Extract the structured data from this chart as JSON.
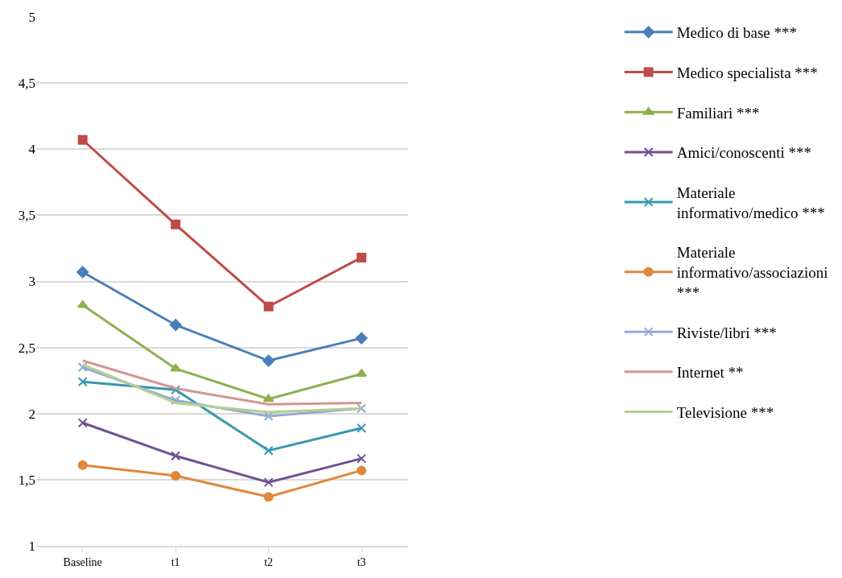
{
  "chart_data": {
    "type": "line",
    "categories": [
      "Baseline",
      "t1",
      "t2",
      "t3"
    ],
    "ylim": [
      1,
      5
    ],
    "yticks": [
      1,
      {
        "value": 1.5,
        "label": "1,5"
      },
      2,
      {
        "value": 2.5,
        "label": "2,5"
      },
      3,
      {
        "value": 3.5,
        "label": "3,5"
      },
      4,
      {
        "value": 4.5,
        "label": "4,5"
      },
      5
    ],
    "grid": "y",
    "legend": "right",
    "series": [
      {
        "name": "Medico di base ***",
        "color": "#4a7ebb",
        "marker": "diamond",
        "values": [
          3.07,
          2.67,
          2.4,
          2.57
        ]
      },
      {
        "name": "Medico specialista ***",
        "color": "#be4b48",
        "marker": "square",
        "values": [
          4.07,
          3.43,
          2.81,
          3.18
        ]
      },
      {
        "name": "Familiari ***",
        "color": "#8eb04f",
        "marker": "triangle",
        "values": [
          2.82,
          2.34,
          2.11,
          2.3
        ]
      },
      {
        "name": "Amici/conoscenti ***",
        "color": "#6f5192",
        "marker": "cross",
        "values": [
          1.93,
          1.68,
          1.48,
          1.66
        ]
      },
      {
        "name": "Materiale informativo/medico ***",
        "color": "#3799ad",
        "marker": "cross",
        "values": [
          2.24,
          2.18,
          1.72,
          1.89
        ]
      },
      {
        "name": "Materiale informativo/associazioni ***",
        "color": "#e0873a",
        "marker": "circle",
        "values": [
          1.61,
          1.53,
          1.37,
          1.57
        ]
      },
      {
        "name": "Riviste/libri ***",
        "color": "#94a9d6",
        "marker": "cross",
        "values": [
          2.35,
          2.1,
          1.98,
          2.04
        ]
      },
      {
        "name": "Internet **",
        "color": "#d49593",
        "marker": "none",
        "values": [
          2.4,
          2.19,
          2.07,
          2.08
        ]
      },
      {
        "name": "Televisione ***",
        "color": "#b6cf8f",
        "marker": "none",
        "values": [
          2.37,
          2.08,
          2.01,
          2.04
        ]
      }
    ]
  }
}
